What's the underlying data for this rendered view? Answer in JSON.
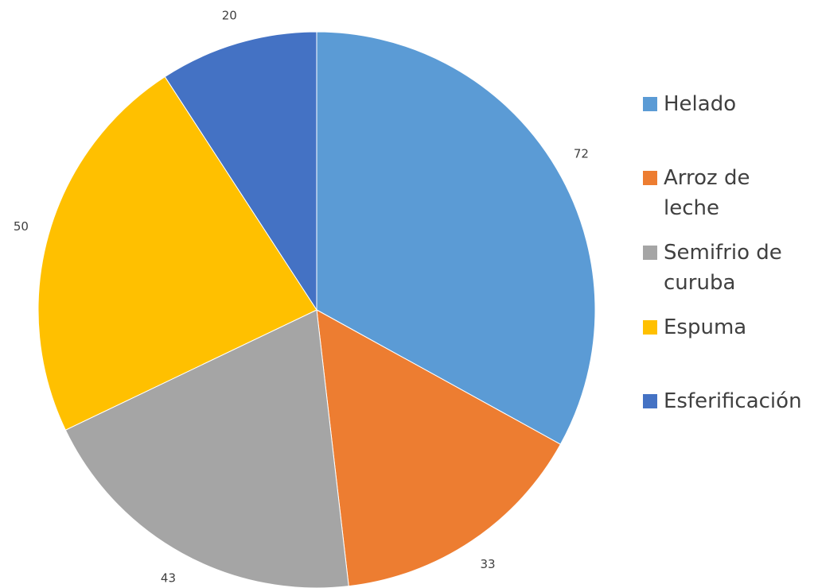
{
  "chart_data": {
    "type": "pie",
    "categories": [
      "Helado",
      "Arroz de leche",
      "Semifrio de curuba",
      "Espuma",
      "Esferificación"
    ],
    "values": [
      72,
      33,
      43,
      50,
      20
    ],
    "colors": [
      "#5b9bd5",
      "#ed7d31",
      "#a5a5a5",
      "#ffc000",
      "#4472c4"
    ],
    "legend": "right"
  }
}
